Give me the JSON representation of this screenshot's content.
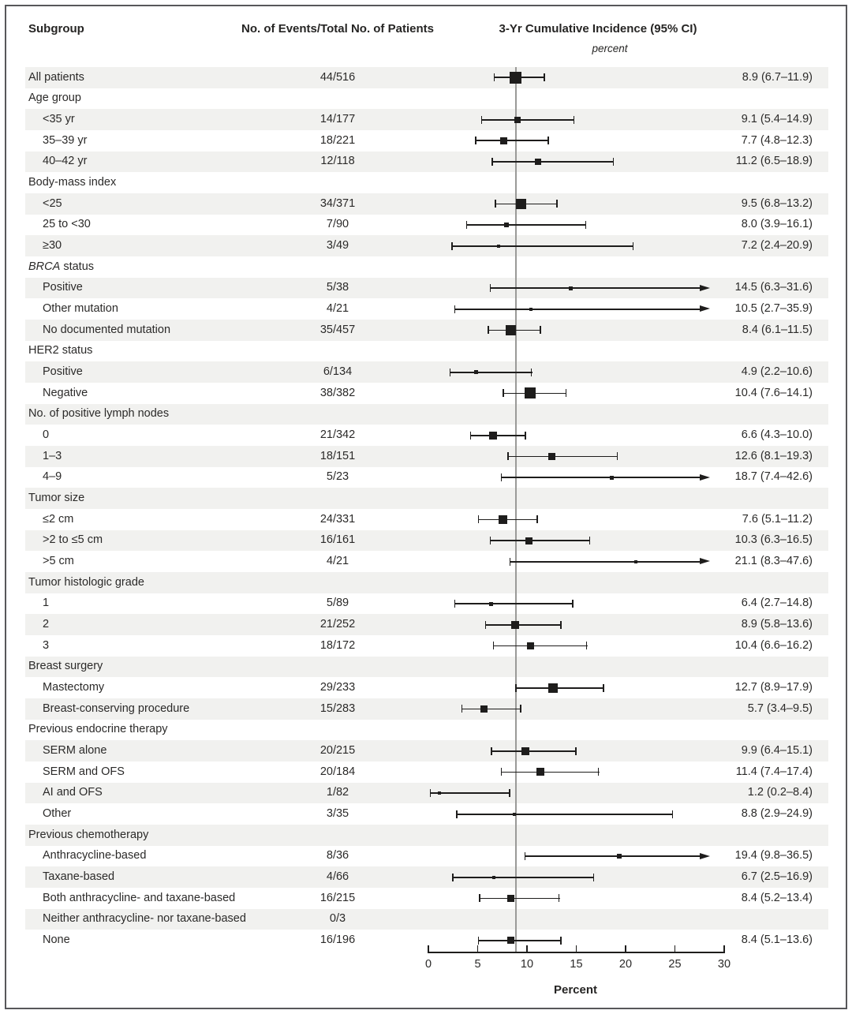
{
  "header": {
    "col_subgroup": "Subgroup",
    "col_events": "No. of Events/Total No. of Patients",
    "col_incidence": "3-Yr Cumulative Incidence (95% CI)",
    "col_incidence_unit": "percent"
  },
  "colors": {
    "marker": "#1e1d1c",
    "row_shading": "#f1f1ef",
    "reference_line": "#9a9a98",
    "frame_border": "#57575a",
    "text": "#2b2a29"
  },
  "chart_data": {
    "type": "forest",
    "xlabel": "Percent",
    "xlim": [
      0,
      30
    ],
    "x_ticks": [
      0,
      5,
      10,
      15,
      20,
      25,
      30
    ],
    "reference_line": 8.9,
    "legend_position": "none",
    "grid": false,
    "rows": [
      {
        "label": "All patients",
        "indent": false,
        "events": "44/516",
        "est": 8.9,
        "lo": 6.7,
        "hi": 11.9,
        "arrow": false,
        "ci_text": "8.9 (6.7–11.9)"
      },
      {
        "label": "Age group",
        "group": true
      },
      {
        "label": "<35 yr",
        "indent": true,
        "events": "14/177",
        "est": 9.1,
        "lo": 5.4,
        "hi": 14.9,
        "arrow": false,
        "ci_text": "9.1 (5.4–14.9)"
      },
      {
        "label": "35–39 yr",
        "indent": true,
        "events": "18/221",
        "est": 7.7,
        "lo": 4.8,
        "hi": 12.3,
        "arrow": false,
        "ci_text": "7.7 (4.8–12.3)"
      },
      {
        "label": "40–42 yr",
        "indent": true,
        "events": "12/118",
        "est": 11.2,
        "lo": 6.5,
        "hi": 18.9,
        "arrow": false,
        "ci_text": "11.2 (6.5–18.9)"
      },
      {
        "label": "Body-mass index",
        "group": true
      },
      {
        "label": "<25",
        "indent": true,
        "events": "34/371",
        "est": 9.5,
        "lo": 6.8,
        "hi": 13.2,
        "arrow": false,
        "ci_text": "9.5 (6.8–13.2)"
      },
      {
        "label": "25 to <30",
        "indent": true,
        "events": "7/90",
        "est": 8.0,
        "lo": 3.9,
        "hi": 16.1,
        "arrow": false,
        "ci_text": "8.0 (3.9–16.1)"
      },
      {
        "label": "≥30",
        "indent": true,
        "events": "3/49",
        "est": 7.2,
        "lo": 2.4,
        "hi": 20.9,
        "arrow": false,
        "ci_text": "7.2 (2.4–20.9)"
      },
      {
        "label_em": "BRCA",
        "label": " status",
        "group": true
      },
      {
        "label": "Positive",
        "indent": true,
        "events": "5/38",
        "est": 14.5,
        "lo": 6.3,
        "hi": 31.6,
        "arrow": true,
        "ci_text": "14.5 (6.3–31.6)"
      },
      {
        "label": "Other mutation",
        "indent": true,
        "events": "4/21",
        "est": 10.5,
        "lo": 2.7,
        "hi": 35.9,
        "arrow": true,
        "ci_text": "10.5 (2.7–35.9)"
      },
      {
        "label": "No documented mutation",
        "indent": true,
        "events": "35/457",
        "est": 8.4,
        "lo": 6.1,
        "hi": 11.5,
        "arrow": false,
        "ci_text": "8.4 (6.1–11.5)"
      },
      {
        "label": "HER2 status",
        "group": true
      },
      {
        "label": "Positive",
        "indent": true,
        "events": "6/134",
        "est": 4.9,
        "lo": 2.2,
        "hi": 10.6,
        "arrow": false,
        "ci_text": "4.9 (2.2–10.6)"
      },
      {
        "label": "Negative",
        "indent": true,
        "events": "38/382",
        "est": 10.4,
        "lo": 7.6,
        "hi": 14.1,
        "arrow": false,
        "ci_text": "10.4 (7.6–14.1)"
      },
      {
        "label": "No. of positive lymph nodes",
        "group": true
      },
      {
        "label": "0",
        "indent": true,
        "events": "21/342",
        "est": 6.6,
        "lo": 4.3,
        "hi": 10.0,
        "arrow": false,
        "ci_text": "6.6 (4.3–10.0)"
      },
      {
        "label": "1–3",
        "indent": true,
        "events": "18/151",
        "est": 12.6,
        "lo": 8.1,
        "hi": 19.3,
        "arrow": false,
        "ci_text": "12.6 (8.1–19.3)"
      },
      {
        "label": "4–9",
        "indent": true,
        "events": "5/23",
        "est": 18.7,
        "lo": 7.4,
        "hi": 42.6,
        "arrow": true,
        "ci_text": "18.7 (7.4–42.6)"
      },
      {
        "label": "Tumor size",
        "group": true
      },
      {
        "label": "≤2 cm",
        "indent": true,
        "events": "24/331",
        "est": 7.6,
        "lo": 5.1,
        "hi": 11.2,
        "arrow": false,
        "ci_text": "7.6 (5.1–11.2)"
      },
      {
        "label": ">2 to ≤5 cm",
        "indent": true,
        "events": "16/161",
        "est": 10.3,
        "lo": 6.3,
        "hi": 16.5,
        "arrow": false,
        "ci_text": "10.3 (6.3–16.5)"
      },
      {
        "label": ">5 cm",
        "indent": true,
        "events": "4/21",
        "est": 21.1,
        "lo": 8.3,
        "hi": 47.6,
        "arrow": true,
        "ci_text": "21.1 (8.3–47.6)"
      },
      {
        "label": "Tumor histologic grade",
        "group": true
      },
      {
        "label": "1",
        "indent": true,
        "events": "5/89",
        "est": 6.4,
        "lo": 2.7,
        "hi": 14.8,
        "arrow": false,
        "ci_text": "6.4 (2.7–14.8)"
      },
      {
        "label": "2",
        "indent": true,
        "events": "21/252",
        "est": 8.9,
        "lo": 5.8,
        "hi": 13.6,
        "arrow": false,
        "ci_text": "8.9 (5.8–13.6)"
      },
      {
        "label": "3",
        "indent": true,
        "events": "18/172",
        "est": 10.4,
        "lo": 6.6,
        "hi": 16.2,
        "arrow": false,
        "ci_text": "10.4 (6.6–16.2)"
      },
      {
        "label": "Breast surgery",
        "group": true
      },
      {
        "label": "Mastectomy",
        "indent": true,
        "events": "29/233",
        "est": 12.7,
        "lo": 8.9,
        "hi": 17.9,
        "arrow": false,
        "ci_text": "12.7 (8.9–17.9)"
      },
      {
        "label": "Breast-conserving procedure",
        "indent": true,
        "events": "15/283",
        "est": 5.7,
        "lo": 3.4,
        "hi": 9.5,
        "arrow": false,
        "ci_text": "5.7 (3.4–9.5)"
      },
      {
        "label": "Previous endocrine therapy",
        "group": true
      },
      {
        "label": "SERM alone",
        "indent": true,
        "events": "20/215",
        "est": 9.9,
        "lo": 6.4,
        "hi": 15.1,
        "arrow": false,
        "ci_text": "9.9 (6.4–15.1)"
      },
      {
        "label": "SERM and OFS",
        "indent": true,
        "events": "20/184",
        "est": 11.4,
        "lo": 7.4,
        "hi": 17.4,
        "arrow": false,
        "ci_text": "11.4 (7.4–17.4)"
      },
      {
        "label": "AI and OFS",
        "indent": true,
        "events": "1/82",
        "est": 1.2,
        "lo": 0.2,
        "hi": 8.4,
        "arrow": false,
        "ci_text": "1.2 (0.2–8.4)"
      },
      {
        "label": "Other",
        "indent": true,
        "events": "3/35",
        "est": 8.8,
        "lo": 2.9,
        "hi": 24.9,
        "arrow": false,
        "ci_text": "8.8 (2.9–24.9)"
      },
      {
        "label": "Previous chemotherapy",
        "group": true
      },
      {
        "label": "Anthracycline-based",
        "indent": true,
        "events": "8/36",
        "est": 19.4,
        "lo": 9.8,
        "hi": 36.5,
        "arrow": true,
        "ci_text": "19.4 (9.8–36.5)"
      },
      {
        "label": "Taxane-based",
        "indent": true,
        "events": "4/66",
        "est": 6.7,
        "lo": 2.5,
        "hi": 16.9,
        "arrow": false,
        "ci_text": "6.7 (2.5–16.9)"
      },
      {
        "label": "Both anthracycline- and taxane-based",
        "indent": true,
        "events": "16/215",
        "est": 8.4,
        "lo": 5.2,
        "hi": 13.4,
        "arrow": false,
        "ci_text": "8.4 (5.2–13.4)"
      },
      {
        "label": "Neither anthracycline- nor taxane-based",
        "indent": true,
        "events": "0/3"
      },
      {
        "label": "None",
        "indent": true,
        "events": "16/196",
        "est": 8.4,
        "lo": 5.1,
        "hi": 13.6,
        "arrow": false,
        "ci_text": "8.4 (5.1–13.6)"
      }
    ]
  }
}
